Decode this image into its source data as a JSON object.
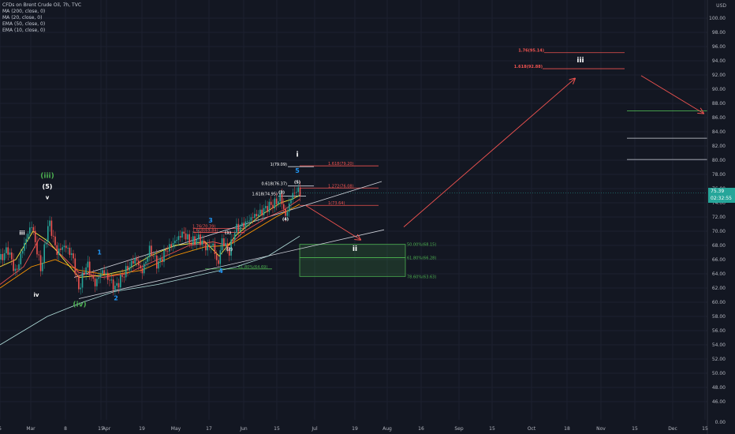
{
  "header": {
    "title": "CFDs on Brent Crude Oil, 7h, TVC",
    "indicators": [
      "MA (200, close, 0)",
      "MA (20, close, 0)",
      "EMA (50, close, 0)",
      "EMA (10, close, 0)"
    ]
  },
  "price_tag": {
    "price": "75.39",
    "countdown": "02:32:55"
  },
  "currency": "USD",
  "colors": {
    "background": "#131722",
    "grid": "#1c2030",
    "up": "#26a69a",
    "down": "#ef5350",
    "target": "#ef5350",
    "fib_green": "#4caf50",
    "wave_blue": "#2196f3",
    "wave_green": "#4caf50",
    "white": "#ffffff",
    "ma200": "#b2dfdb",
    "ma20": "#ef5350",
    "ema50": "#ff9800",
    "ema10": "#ffeb3b"
  },
  "chart_data": {
    "type": "candlestick",
    "title": "CFDs on Brent Crude Oil, 7h, TVC",
    "y_range": [
      45,
      101
    ],
    "y_ticks": [
      "46.00",
      "48.00",
      "50.00",
      "52.00",
      "54.00",
      "56.00",
      "58.00",
      "60.00",
      "62.00",
      "64.00",
      "66.00",
      "68.00",
      "70.00",
      "72.00",
      "74.00",
      "76.00",
      "78.00",
      "80.00",
      "82.00",
      "84.00",
      "86.00",
      "88.00",
      "90.00",
      "92.00",
      "94.00",
      "96.00",
      "98.00",
      "100.00"
    ],
    "y_scale_extra": "0.00",
    "x_ticks": [
      "5",
      "Mar",
      "8",
      "15",
      "Apr",
      "19",
      "May",
      "17",
      "Jun",
      "15",
      "Jul",
      "19",
      "Aug",
      "16",
      "Sep",
      "15",
      "Oct",
      "18",
      "Nov",
      "15",
      "Dec",
      "15"
    ],
    "x_tick_pos": [
      0,
      39,
      83,
      128,
      135,
      180,
      223,
      265,
      309,
      351,
      399,
      450,
      491,
      534,
      582,
      624,
      674,
      719,
      762,
      805,
      853,
      894
    ],
    "price_path": [
      [
        0,
        66.0
      ],
      [
        10,
        67.5
      ],
      [
        20,
        64.0
      ],
      [
        30,
        68.0
      ],
      [
        40,
        71.0
      ],
      [
        52,
        64.5
      ],
      [
        62,
        71.5
      ],
      [
        72,
        67.0
      ],
      [
        82,
        68.0
      ],
      [
        92,
        66.5
      ],
      [
        100,
        61.8
      ],
      [
        110,
        65.5
      ],
      [
        120,
        62.5
      ],
      [
        130,
        64.5
      ],
      [
        146,
        62.0
      ],
      [
        160,
        64.5
      ],
      [
        172,
        66.2
      ],
      [
        180,
        64.2
      ],
      [
        190,
        67.5
      ],
      [
        200,
        65.2
      ],
      [
        210,
        67.2
      ],
      [
        222,
        68.6
      ],
      [
        232,
        69.8
      ],
      [
        242,
        68.4
      ],
      [
        252,
        69.0
      ],
      [
        262,
        67.6
      ],
      [
        270,
        68.2
      ],
      [
        276,
        65.0
      ],
      [
        282,
        69.0
      ],
      [
        290,
        66.8
      ],
      [
        298,
        70.2
      ],
      [
        310,
        71.0
      ],
      [
        320,
        72.0
      ],
      [
        330,
        72.6
      ],
      [
        340,
        73.5
      ],
      [
        350,
        74.0
      ],
      [
        356,
        74.9
      ],
      [
        362,
        72.0
      ],
      [
        370,
        75.0
      ],
      [
        376,
        75.8
      ],
      [
        381,
        75.4
      ]
    ],
    "ma200": [
      [
        0,
        54.0
      ],
      [
        60,
        58.0
      ],
      [
        105,
        60.0
      ],
      [
        145,
        61.5
      ],
      [
        200,
        62.5
      ],
      [
        260,
        64.0
      ],
      [
        300,
        65.0
      ],
      [
        340,
        66.5
      ],
      [
        360,
        67.9
      ],
      [
        380,
        69.3
      ]
    ],
    "ma20": [
      [
        0,
        62.5
      ],
      [
        30,
        65.0
      ],
      [
        50,
        69.0
      ],
      [
        70,
        67.5
      ],
      [
        100,
        64.2
      ],
      [
        130,
        63.5
      ],
      [
        160,
        64.0
      ],
      [
        200,
        66.0
      ],
      [
        240,
        68.0
      ],
      [
        270,
        68.5
      ],
      [
        290,
        68.0
      ],
      [
        310,
        70.0
      ],
      [
        340,
        72.0
      ],
      [
        360,
        73.0
      ],
      [
        380,
        74.5
      ]
    ],
    "ema50": [
      [
        0,
        62.0
      ],
      [
        40,
        65.0
      ],
      [
        70,
        66.0
      ],
      [
        100,
        64.5
      ],
      [
        140,
        63.8
      ],
      [
        180,
        64.5
      ],
      [
        220,
        66.5
      ],
      [
        260,
        67.8
      ],
      [
        290,
        68.0
      ],
      [
        320,
        70.0
      ],
      [
        350,
        72.0
      ],
      [
        380,
        73.8
      ]
    ],
    "ema10": [
      [
        0,
        65.0
      ],
      [
        20,
        66.0
      ],
      [
        42,
        70.0
      ],
      [
        62,
        68.5
      ],
      [
        100,
        63.5
      ],
      [
        130,
        63.8
      ],
      [
        160,
        64.5
      ],
      [
        190,
        66.5
      ],
      [
        222,
        68.0
      ],
      [
        260,
        68.5
      ],
      [
        278,
        66.5
      ],
      [
        300,
        69.5
      ],
      [
        330,
        72.2
      ],
      [
        356,
        74.0
      ],
      [
        370,
        74.5
      ],
      [
        381,
        75.1
      ]
    ],
    "channel_lines": [
      {
        "from": [
          94,
          63.5
        ],
        "to": [
          484,
          77.0
        ],
        "color": "#ffffff"
      },
      {
        "from": [
          100,
          60.5
        ],
        "to": [
          487,
          70.2
        ],
        "color": "#ffffff"
      }
    ],
    "levels": [
      {
        "label": "1.76(95.14)",
        "x1": 690,
        "x2": 792,
        "y": 95.14,
        "kind": "target"
      },
      {
        "label": "1.618(92.88)",
        "x1": 688,
        "x2": 792,
        "y": 92.88,
        "kind": "target"
      },
      {
        "label": "1.618(79.20)",
        "x1": 380,
        "x2": 480,
        "y": 79.2,
        "kind": "target"
      },
      {
        "label": "1.272(76.08)",
        "x1": 380,
        "x2": 480,
        "y": 76.08,
        "kind": "target"
      },
      {
        "label": "1(73.64)",
        "x1": 380,
        "x2": 480,
        "y": 73.64,
        "kind": "target"
      },
      {
        "label": "1(79.09)",
        "x1": 365,
        "x2": 398,
        "y": 79.09,
        "kind": "white"
      },
      {
        "label": "0.618(76.37)",
        "x1": 365,
        "x2": 398,
        "y": 76.37,
        "kind": "white"
      },
      {
        "label": "1.618(74.95)",
        "x1": 353,
        "x2": 388,
        "y": 74.95,
        "kind": "white"
      },
      {
        "label": "1.76(70.39)",
        "x1": 245,
        "x2": 310,
        "y": 70.39,
        "kind": "target"
      },
      {
        "label": "1.618(69.84)",
        "x1": 245,
        "x2": 310,
        "y": 69.84,
        "kind": "target"
      },
      {
        "label": "61.80%(64.69)",
        "x1": 260,
        "x2": 345,
        "y": 64.69,
        "kind": "fib_green"
      },
      {
        "label": "",
        "x1": 795,
        "x2": 897,
        "y": 86.95,
        "kind": "fib_green"
      },
      {
        "label": "",
        "x1": 795,
        "x2": 897,
        "y": 83.1,
        "kind": "white"
      },
      {
        "label": "",
        "x1": 795,
        "x2": 897,
        "y": 80.1,
        "kind": "white"
      }
    ],
    "zones": [
      {
        "x1": 380,
        "x2": 514,
        "top": 68.15,
        "bottom": 66.28,
        "label": "50.00%(68.15)"
      },
      {
        "x1": 380,
        "x2": 514,
        "top": 66.28,
        "bottom": 63.63,
        "label": "61.80%(66.28)",
        "bottom_label": "78.60%(63.63)"
      }
    ],
    "arrows": [
      {
        "from": [
          388,
          73.6
        ],
        "to": [
          457,
          68.8
        ]
      },
      {
        "from": [
          512,
          70.6
        ],
        "to": [
          729,
          91.5
        ]
      },
      {
        "from": [
          813,
          91.9
        ],
        "to": [
          892,
          86.6
        ]
      }
    ],
    "wave_labels": [
      {
        "text": "(iii)",
        "x": 60,
        "y": 77.5,
        "color": "wave_green",
        "size": 9
      },
      {
        "text": "(5)",
        "x": 60,
        "y": 76.0,
        "color": "white",
        "size": 8
      },
      {
        "text": "v",
        "x": 60,
        "y": 74.5,
        "color": "white",
        "size": 7
      },
      {
        "text": "iii",
        "x": 28,
        "y": 69.5,
        "color": "white",
        "size": 7
      },
      {
        "text": "iv",
        "x": 46,
        "y": 60.8,
        "color": "white",
        "size": 7
      },
      {
        "text": "(iv)",
        "x": 101,
        "y": 59.4,
        "color": "wave_green",
        "size": 9
      },
      {
        "text": "1",
        "x": 126,
        "y": 66.7,
        "color": "wave_blue",
        "size": 8
      },
      {
        "text": "2",
        "x": 147,
        "y": 60.3,
        "color": "wave_blue",
        "size": 8
      },
      {
        "text": "3",
        "x": 267,
        "y": 71.2,
        "color": "wave_blue",
        "size": 8
      },
      {
        "text": "4",
        "x": 280,
        "y": 64.1,
        "color": "wave_blue",
        "size": 8
      },
      {
        "text": "(1)",
        "x": 289,
        "y": 69.6,
        "color": "white",
        "size": 5
      },
      {
        "text": "(2)",
        "x": 291,
        "y": 67.3,
        "color": "white",
        "size": 5
      },
      {
        "text": "(3)",
        "x": 357,
        "y": 75.3,
        "color": "white",
        "size": 5
      },
      {
        "text": "(4)",
        "x": 362,
        "y": 71.5,
        "color": "white",
        "size": 5
      },
      {
        "text": "(5)",
        "x": 377,
        "y": 76.7,
        "color": "white",
        "size": 5
      },
      {
        "text": "5",
        "x": 377,
        "y": 78.2,
        "color": "wave_blue",
        "size": 8
      },
      {
        "text": "i",
        "x": 377,
        "y": 80.5,
        "color": "white",
        "size": 9
      },
      {
        "text": "ii",
        "x": 450,
        "y": 67.2,
        "color": "white",
        "size": 9
      },
      {
        "text": "iii",
        "x": 736,
        "y": 93.8,
        "color": "white",
        "size": 9
      }
    ]
  }
}
